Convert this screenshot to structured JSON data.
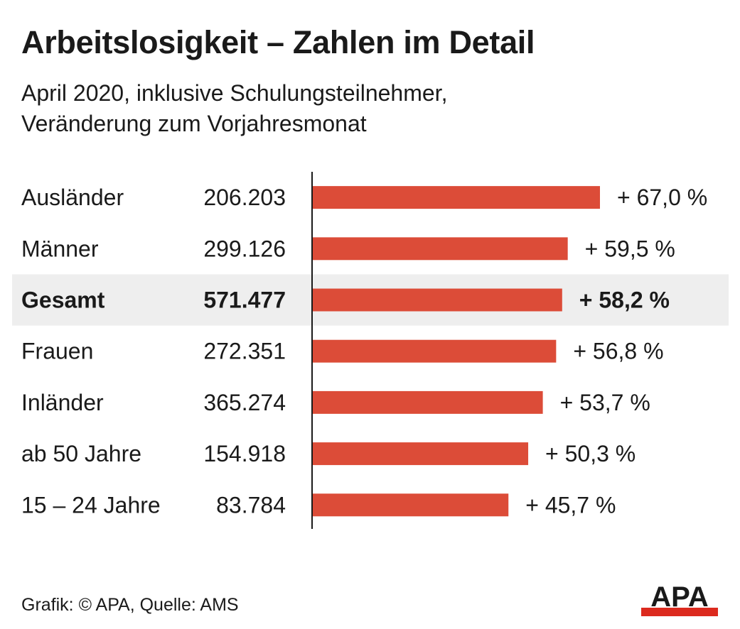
{
  "title": "Arbeitslosigkeit – Zahlen im Detail",
  "subtitle_line1": "April 2020, inklusive Schulungsteilnehmer,",
  "subtitle_line2": "Veränderung zum Vorjahresmonat",
  "footer": "Grafik: © APA, Quelle: AMS",
  "logo_text": "APA",
  "colors": {
    "bar": "#dc4c38",
    "highlight_row": "#eeeeee",
    "text": "#1a1a1a",
    "logo_stripe": "#dc2a1e"
  },
  "chart_data": {
    "type": "bar",
    "orientation": "horizontal",
    "categories": [
      "Ausländer",
      "Männer",
      "Gesamt",
      "Frauen",
      "Inländer",
      "ab 50 Jahre",
      "15 – 24 Jahre"
    ],
    "counts": [
      "206.203",
      "299.126",
      "571.477",
      "272.351",
      "365.274",
      "154.918",
      "83.784"
    ],
    "values": [
      67.0,
      59.5,
      58.2,
      56.8,
      53.7,
      50.3,
      45.7
    ],
    "value_labels": [
      "+ 67,0 %",
      "+ 59,5 %",
      "+ 58,2 %",
      "+ 56,8 %",
      "+ 53,7 %",
      "+ 50,3 %",
      "+ 45,7 %"
    ],
    "highlight_category": "Gesamt",
    "xlim": [
      0,
      67
    ],
    "grid": false,
    "legend": "none"
  }
}
